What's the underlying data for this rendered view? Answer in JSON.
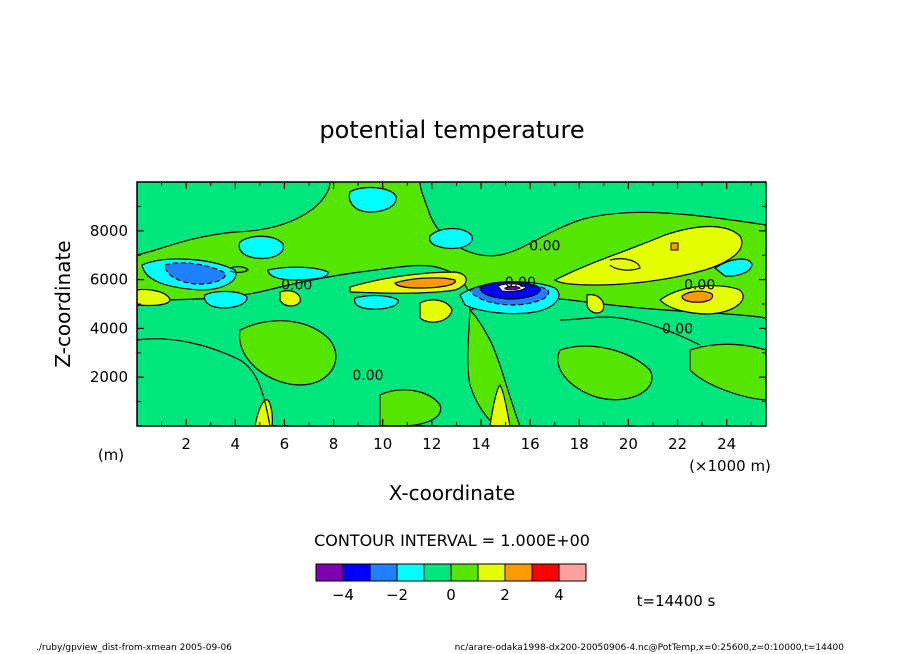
{
  "chart_data": {
    "type": "heatmap",
    "title": "potential temperature",
    "xlabel": "X-coordinate",
    "ylabel": "Z-coordinate",
    "x_unit": "(×1000 m)",
    "y_unit": "(m)",
    "xlim": [
      0,
      25.6
    ],
    "ylim": [
      0,
      10000
    ],
    "x_ticks": [
      2,
      4,
      6,
      8,
      10,
      12,
      14,
      16,
      18,
      20,
      22,
      24
    ],
    "y_ticks": [
      2000,
      4000,
      6000,
      8000
    ],
    "contour_interval_label": "CONTOUR INTERVAL = 1.000E+00",
    "contour_labels": [
      {
        "text": "0.00",
        "x": 6.5,
        "z": 5800
      },
      {
        "text": "0.00",
        "x": 9.4,
        "z": 2100
      },
      {
        "text": "0.00",
        "x": 16.6,
        "z": 7400
      },
      {
        "text": "0.00",
        "x": 22.9,
        "z": 5800
      },
      {
        "text": "0.00",
        "x": 22.0,
        "z": 4000
      },
      {
        "text": "0.00",
        "x": 15.6,
        "z": 5900
      }
    ],
    "colorbar": {
      "colors": [
        "#7f00b2",
        "#0000ff",
        "#1e7fff",
        "#00ffff",
        "#00e67f",
        "#55e600",
        "#e6ff00",
        "#ff9900",
        "#ff0000",
        "#ffa0a0"
      ],
      "tick_labels": [
        "-4",
        "-2",
        "0",
        "2",
        "4"
      ]
    },
    "time_label": "t=14400 s"
  },
  "footer": {
    "left": "./ruby/gpview_dist-from-xmean  2005-09-06",
    "right": "nc/arare-odaka1998-dx200-20050906-4.nc@PotTemp,x=0:25600,z=0:10000,t=14400"
  }
}
